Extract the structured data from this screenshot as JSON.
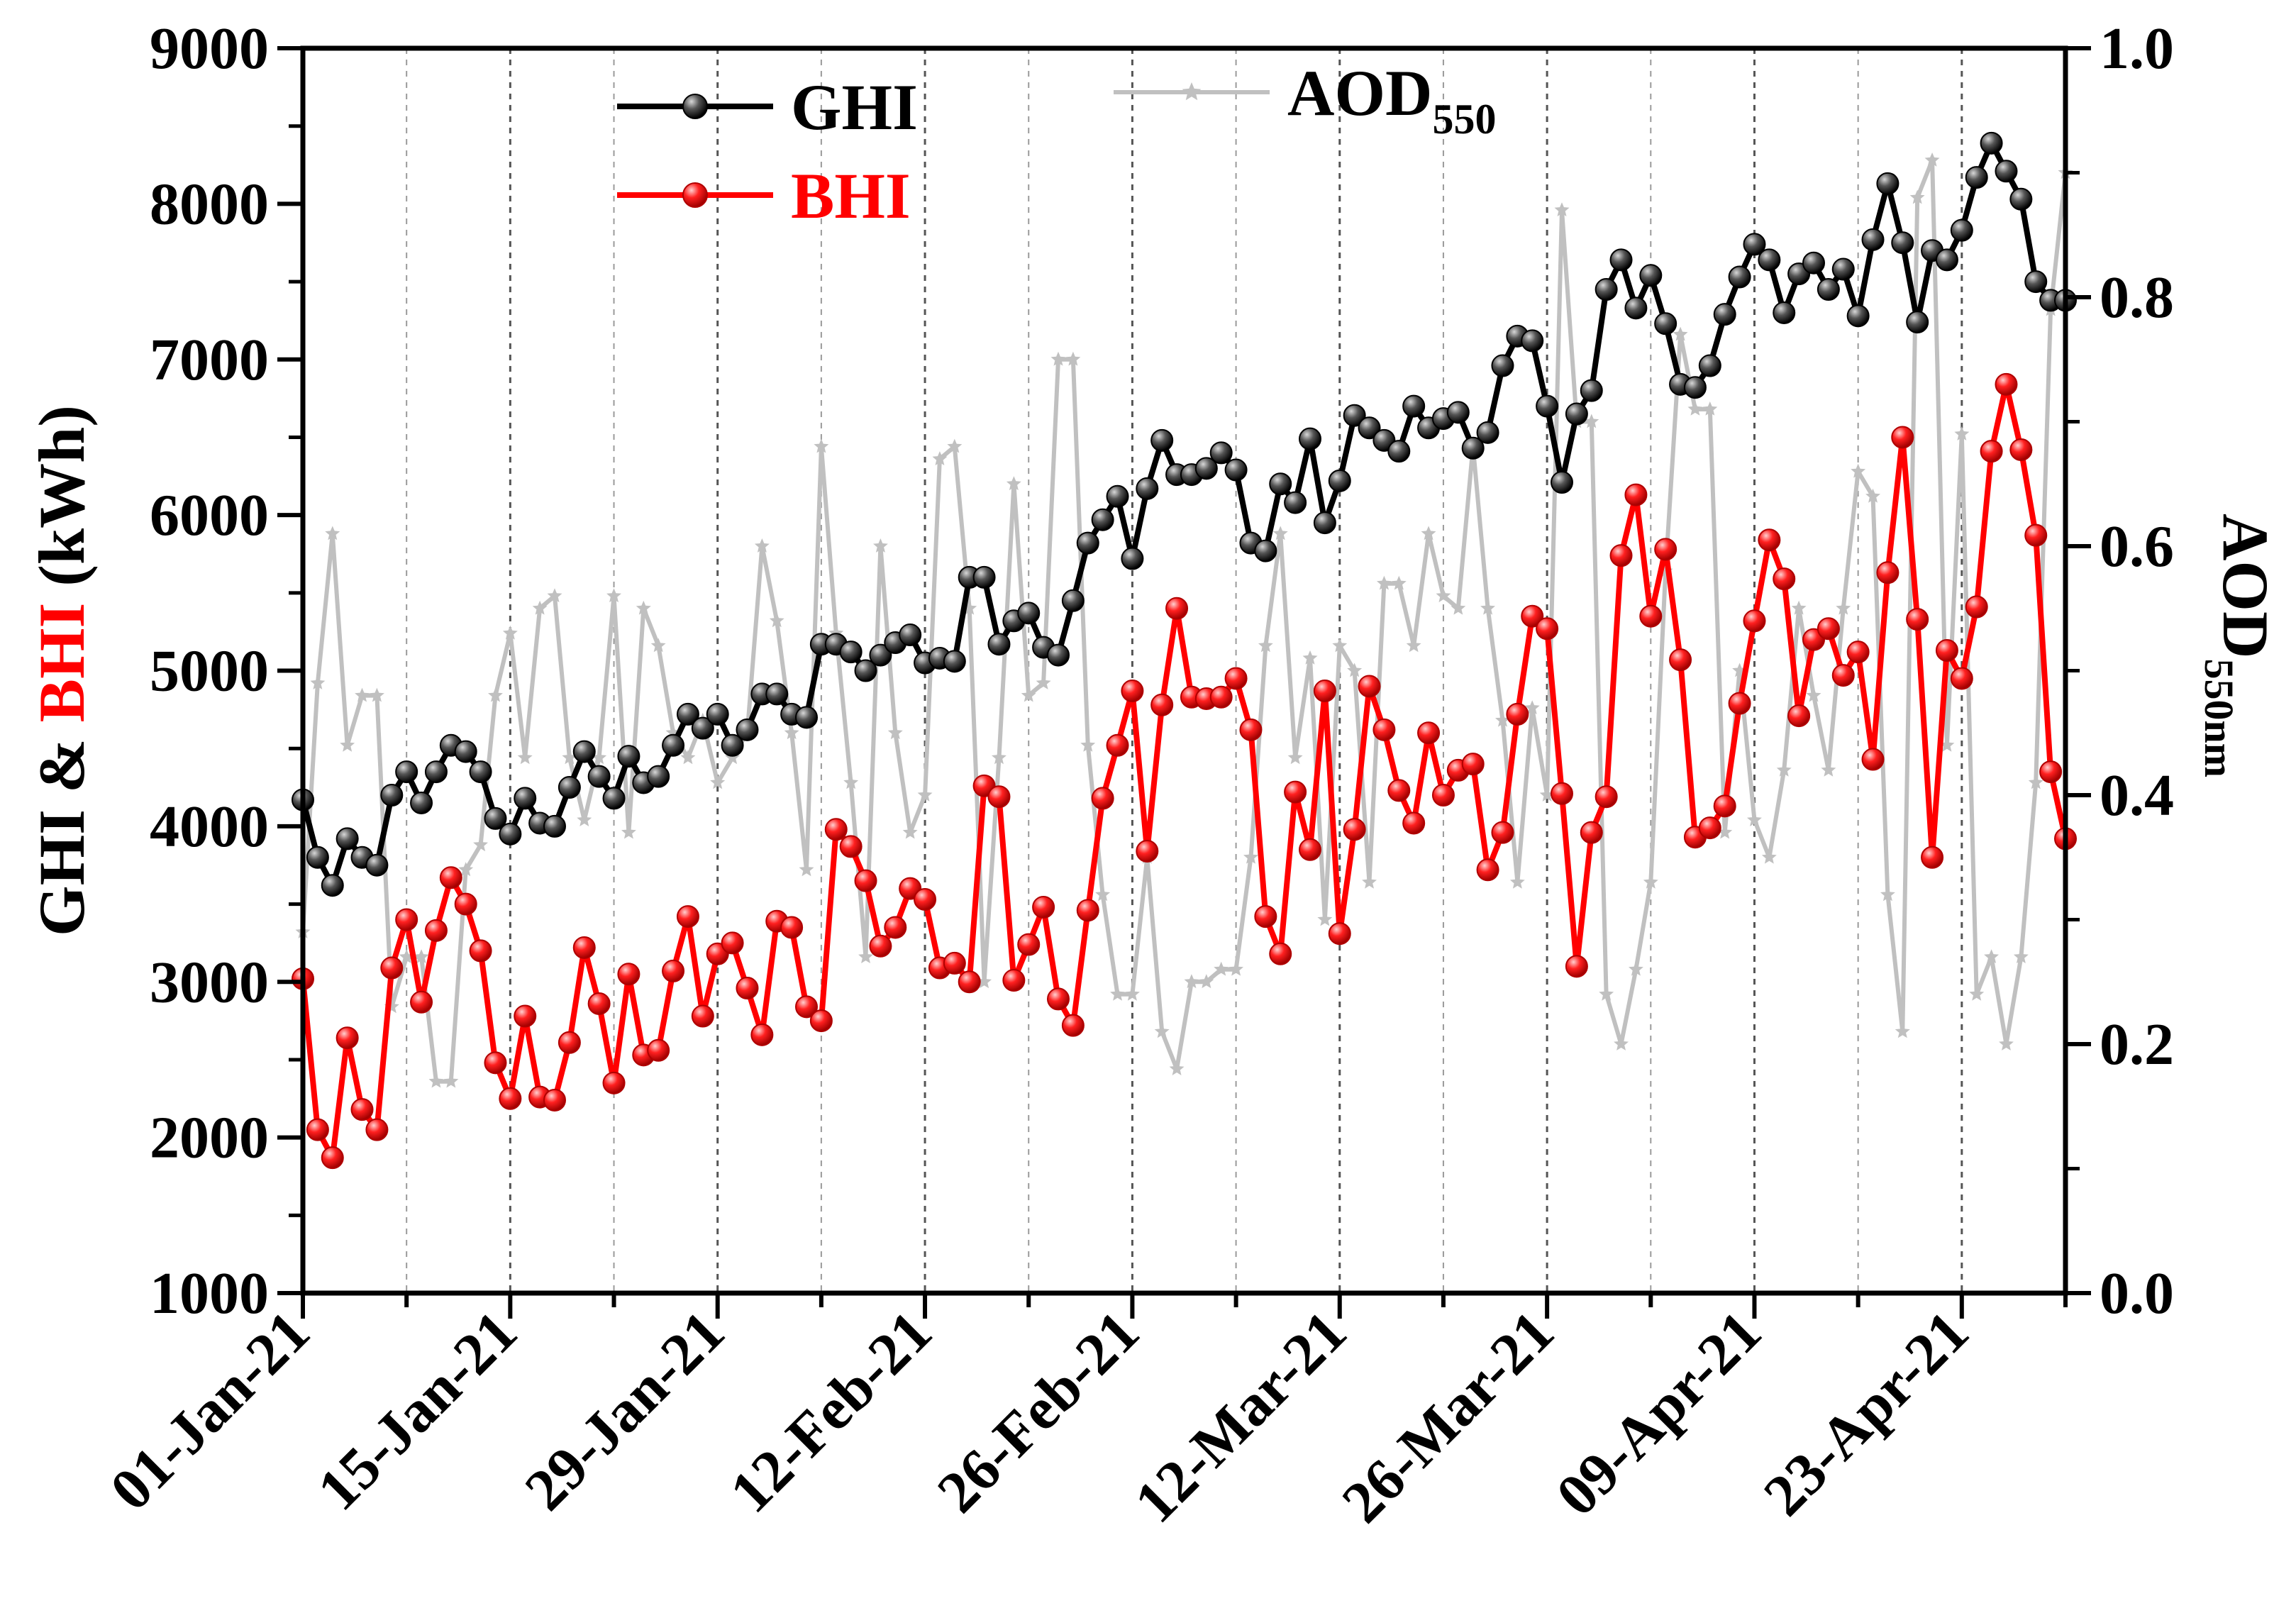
{
  "chart_data": {
    "type": "line",
    "x": [
      "2021-01-01",
      "2021-01-02",
      "2021-01-03",
      "2021-01-04",
      "2021-01-05",
      "2021-01-06",
      "2021-01-07",
      "2021-01-08",
      "2021-01-09",
      "2021-01-10",
      "2021-01-11",
      "2021-01-12",
      "2021-01-13",
      "2021-01-14",
      "2021-01-15",
      "2021-01-16",
      "2021-01-17",
      "2021-01-18",
      "2021-01-19",
      "2021-01-20",
      "2021-01-21",
      "2021-01-22",
      "2021-01-23",
      "2021-01-24",
      "2021-01-25",
      "2021-01-26",
      "2021-01-27",
      "2021-01-28",
      "2021-01-29",
      "2021-01-30",
      "2021-01-31",
      "2021-02-01",
      "2021-02-02",
      "2021-02-03",
      "2021-02-04",
      "2021-02-05",
      "2021-02-06",
      "2021-02-07",
      "2021-02-08",
      "2021-02-09",
      "2021-02-10",
      "2021-02-11",
      "2021-02-12",
      "2021-02-13",
      "2021-02-14",
      "2021-02-15",
      "2021-02-16",
      "2021-02-17",
      "2021-02-18",
      "2021-02-19",
      "2021-02-20",
      "2021-02-21",
      "2021-02-22",
      "2021-02-23",
      "2021-02-24",
      "2021-02-25",
      "2021-02-26",
      "2021-02-27",
      "2021-02-28",
      "2021-03-01",
      "2021-03-02",
      "2021-03-03",
      "2021-03-04",
      "2021-03-05",
      "2021-03-06",
      "2021-03-07",
      "2021-03-08",
      "2021-03-09",
      "2021-03-10",
      "2021-03-11",
      "2021-03-12",
      "2021-03-13",
      "2021-03-14",
      "2021-03-15",
      "2021-03-16",
      "2021-03-17",
      "2021-03-18",
      "2021-03-19",
      "2021-03-20",
      "2021-03-21",
      "2021-03-22",
      "2021-03-23",
      "2021-03-24",
      "2021-03-25",
      "2021-03-26",
      "2021-03-27",
      "2021-03-28",
      "2021-03-29",
      "2021-03-30",
      "2021-03-31",
      "2021-04-01",
      "2021-04-02",
      "2021-04-03",
      "2021-04-04",
      "2021-04-05",
      "2021-04-06",
      "2021-04-07",
      "2021-04-08",
      "2021-04-09",
      "2021-04-10",
      "2021-04-11",
      "2021-04-12",
      "2021-04-13",
      "2021-04-14",
      "2021-04-15",
      "2021-04-16",
      "2021-04-17",
      "2021-04-18",
      "2021-04-19",
      "2021-04-20",
      "2021-04-21",
      "2021-04-22",
      "2021-04-23",
      "2021-04-24",
      "2021-04-25",
      "2021-04-26",
      "2021-04-27",
      "2021-04-28",
      "2021-04-29",
      "2021-04-30"
    ],
    "x_tick_labels": [
      "01-Jan-21",
      "15-Jan-21",
      "29-Jan-21",
      "12-Feb-21",
      "26-Feb-21",
      "12-Mar-21",
      "26-Mar-21",
      "09-Apr-21",
      "23-Apr-21"
    ],
    "x_tick_days": [
      0,
      14,
      28,
      42,
      56,
      70,
      84,
      98,
      112
    ],
    "x_range_days": [
      0,
      119
    ],
    "y_left": {
      "label_parts": [
        "GHI",
        " & ",
        "BHI",
        " (kWh)"
      ],
      "label_colors": [
        "#000000",
        "#000000",
        "#ff0000",
        "#000000"
      ],
      "range": [
        1000,
        9000
      ],
      "ticks": [
        "1000",
        "2000",
        "3000",
        "4000",
        "5000",
        "6000",
        "7000",
        "8000",
        "9000"
      ]
    },
    "y_right": {
      "label": "AOD",
      "label_sub": "550nm",
      "range": [
        0.0,
        1.0
      ],
      "ticks": [
        "0.0",
        "0.2",
        "0.4",
        "0.6",
        "0.8",
        "1.0"
      ]
    },
    "series": [
      {
        "name": "GHI",
        "axis": "left",
        "color": "#000000",
        "marker": "sphere",
        "values": [
          4170,
          3800,
          3620,
          3920,
          3800,
          3750,
          4200,
          4350,
          4150,
          4350,
          4520,
          4480,
          4350,
          4050,
          3950,
          4180,
          4020,
          4000,
          4250,
          4480,
          4320,
          4180,
          4450,
          4280,
          4320,
          4520,
          4720,
          4630,
          4720,
          4520,
          4620,
          4850,
          4850,
          4720,
          4700,
          5170,
          5170,
          5120,
          5000,
          5100,
          5180,
          5230,
          5050,
          5080,
          5060,
          5600,
          5600,
          5170,
          5320,
          5370,
          5150,
          5100,
          5450,
          5820,
          5970,
          6120,
          5720,
          6170,
          6480,
          6260,
          6260,
          6300,
          6400,
          6290,
          5820,
          5770,
          6200,
          6080,
          6490,
          5950,
          6220,
          6640,
          6560,
          6480,
          6410,
          6700,
          6560,
          6620,
          6660,
          6430,
          6530,
          6960,
          7150,
          7120,
          6700,
          6210,
          6650,
          6800,
          7450,
          7640,
          7330,
          7540,
          7230,
          6840,
          6820,
          6960,
          7290,
          7530,
          7740,
          7640,
          7300,
          7550,
          7620,
          7450,
          7580,
          7280,
          7770,
          8130,
          7750,
          7240,
          7700,
          7640,
          7830,
          8170,
          8390,
          8210,
          8030,
          7500,
          7380,
          7380
        ]
      },
      {
        "name": "BHI",
        "axis": "left",
        "color": "#ff0000",
        "marker": "sphere",
        "values": [
          3020,
          2050,
          1870,
          2640,
          2180,
          2050,
          3090,
          3400,
          2870,
          3330,
          3670,
          3500,
          3200,
          2480,
          2250,
          2780,
          2260,
          2240,
          2610,
          3220,
          2860,
          2350,
          3050,
          2530,
          2560,
          3070,
          3420,
          2780,
          3180,
          3250,
          2960,
          2660,
          3390,
          3350,
          2840,
          2750,
          3980,
          3870,
          3650,
          3230,
          3350,
          3600,
          3530,
          3090,
          3120,
          3000,
          4260,
          4190,
          3010,
          3240,
          3480,
          2890,
          2720,
          3460,
          4180,
          4520,
          4870,
          3840,
          4780,
          5400,
          4830,
          4820,
          4830,
          4950,
          4620,
          3420,
          3180,
          4220,
          3850,
          4870,
          3310,
          3980,
          4900,
          4620,
          4230,
          4020,
          4600,
          4200,
          4360,
          4400,
          3720,
          3960,
          4720,
          5350,
          5270,
          4210,
          3100,
          3960,
          4190,
          5740,
          6130,
          5350,
          5780,
          5070,
          3930,
          3990,
          4130,
          4790,
          5320,
          5840,
          5590,
          4710,
          5200,
          5270,
          4970,
          5120,
          4430,
          5630,
          6500,
          5330,
          3800,
          5130,
          4950,
          5410,
          6410,
          6840,
          6420,
          5870,
          4350,
          3920
        ]
      },
      {
        "name": "AOD",
        "name_sub": "550",
        "axis": "right",
        "color": "#c0c0c0",
        "marker": "star",
        "values": [
          0.29,
          0.49,
          0.61,
          0.44,
          0.48,
          0.48,
          0.23,
          0.27,
          0.27,
          0.17,
          0.17,
          0.34,
          0.36,
          0.48,
          0.53,
          0.43,
          0.55,
          0.56,
          0.43,
          0.38,
          0.43,
          0.56,
          0.37,
          0.55,
          0.52,
          0.45,
          0.43,
          0.46,
          0.41,
          0.43,
          0.45,
          0.6,
          0.54,
          0.45,
          0.34,
          0.68,
          0.53,
          0.41,
          0.27,
          0.6,
          0.45,
          0.37,
          0.4,
          0.67,
          0.68,
          0.55,
          0.25,
          0.43,
          0.65,
          0.48,
          0.49,
          0.75,
          0.75,
          0.44,
          0.32,
          0.24,
          0.24,
          0.35,
          0.21,
          0.18,
          0.25,
          0.25,
          0.26,
          0.26,
          0.35,
          0.52,
          0.61,
          0.43,
          0.51,
          0.3,
          0.52,
          0.5,
          0.33,
          0.57,
          0.57,
          0.52,
          0.61,
          0.56,
          0.55,
          0.68,
          0.55,
          0.46,
          0.33,
          0.47,
          0.4,
          0.87,
          0.7,
          0.7,
          0.24,
          0.2,
          0.26,
          0.33,
          0.58,
          0.77,
          0.71,
          0.71,
          0.37,
          0.5,
          0.38,
          0.35,
          0.42,
          0.55,
          0.48,
          0.42,
          0.55,
          0.66,
          0.64,
          0.32,
          0.21,
          0.88,
          0.91,
          0.44,
          0.69,
          0.24,
          0.27,
          0.2,
          0.27,
          0.41,
          0.79,
          0.9
        ]
      }
    ],
    "legend": [
      {
        "series": "GHI",
        "label": "GHI",
        "sub": ""
      },
      {
        "series": "BHI",
        "label": "BHI",
        "sub": ""
      },
      {
        "series": "AOD",
        "label": "AOD",
        "sub": "550"
      }
    ]
  }
}
